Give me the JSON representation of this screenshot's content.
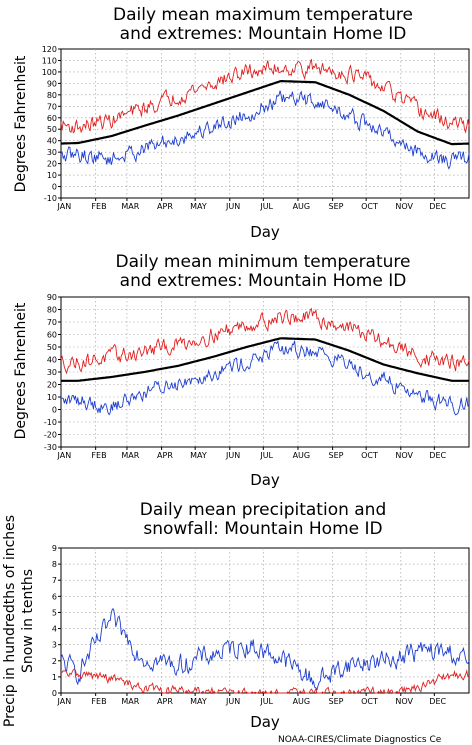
{
  "credit": "NOAA-CIRES/Climate Diagnostics Ce",
  "colors": {
    "mean": "#000000",
    "max_extreme": "#e02020",
    "min_extreme": "#1f3fd0",
    "precip": "#1f3fd0",
    "snow": "#e02020",
    "grid": "#999999"
  },
  "chart_data": [
    {
      "type": "line",
      "title_lines": [
        "Daily mean maximum temperature",
        "and extremes: Mountain Home ID"
      ],
      "xlabel": "Day",
      "ylabel": "Degrees Fahrenheit",
      "categories": [
        "JAN",
        "FEB",
        "MAR",
        "APR",
        "MAY",
        "JUN",
        "JUL",
        "AUG",
        "SEP",
        "OCT",
        "NOV",
        "DEC"
      ],
      "yticks": [
        -10,
        0,
        10,
        20,
        30,
        40,
        50,
        60,
        70,
        80,
        90,
        100,
        110,
        120
      ],
      "ylim": [
        -10,
        120
      ],
      "grid": true,
      "series": [
        {
          "role": "mean",
          "values": [
            38,
            44,
            53,
            62,
            72,
            82,
            92,
            91,
            80,
            66,
            48,
            37
          ]
        },
        {
          "role": "max_extreme",
          "values": [
            52,
            58,
            68,
            80,
            90,
            100,
            104,
            103,
            99,
            86,
            67,
            55
          ]
        },
        {
          "role": "min_extreme",
          "values": [
            28,
            24,
            33,
            42,
            52,
            63,
            76,
            75,
            61,
            47,
            30,
            22
          ]
        }
      ]
    },
    {
      "type": "line",
      "title_lines": [
        "Daily mean minimum temperature",
        "and extremes: Mountain Home ID"
      ],
      "xlabel": "Day",
      "ylabel": "Degrees Fahrenheit",
      "categories": [
        "JAN",
        "FEB",
        "MAR",
        "APR",
        "MAY",
        "JUN",
        "JUL",
        "AUG",
        "SEP",
        "OCT",
        "NOV",
        "DEC"
      ],
      "yticks": [
        -30,
        -20,
        -10,
        0,
        10,
        20,
        30,
        40,
        50,
        60,
        70,
        80,
        90
      ],
      "ylim": [
        -30,
        90
      ],
      "grid": true,
      "series": [
        {
          "role": "mean",
          "values": [
            23,
            26,
            30,
            35,
            42,
            50,
            57,
            56,
            47,
            36,
            29,
            23
          ]
        },
        {
          "role": "max_extreme",
          "values": [
            38,
            42,
            46,
            52,
            60,
            68,
            74,
            73,
            66,
            54,
            43,
            37
          ]
        },
        {
          "role": "min_extreme",
          "values": [
            8,
            2,
            14,
            22,
            30,
            38,
            48,
            47,
            36,
            24,
            12,
            4
          ]
        }
      ]
    },
    {
      "type": "line",
      "title_lines": [
        "Daily mean precipitation and",
        "snowfall: Mountain Home ID"
      ],
      "xlabel": "Day",
      "ylabel_lines": [
        "Precip in hundredths of inches",
        "Snow in tenths"
      ],
      "categories": [
        "JAN",
        "FEB",
        "MAR",
        "APR",
        "MAY",
        "JUN",
        "JUL",
        "AUG",
        "SEP",
        "OCT",
        "NOV",
        "DEC"
      ],
      "yticks": [
        0,
        1,
        2,
        3,
        4,
        5,
        6,
        7,
        8,
        9
      ],
      "ylim": [
        0,
        9
      ],
      "grid": true,
      "series": [
        {
          "role": "precip",
          "values": [
            1.3,
            4.5,
            2.2,
            1.7,
            2.4,
            3.0,
            2.2,
            0.7,
            1.8,
            2.0,
            2.6,
            2.5
          ]
        },
        {
          "role": "snow",
          "values": [
            1.2,
            0.9,
            0.3,
            0.1,
            0.02,
            0,
            0,
            0,
            0,
            0.05,
            0.3,
            1.1
          ]
        }
      ]
    }
  ]
}
